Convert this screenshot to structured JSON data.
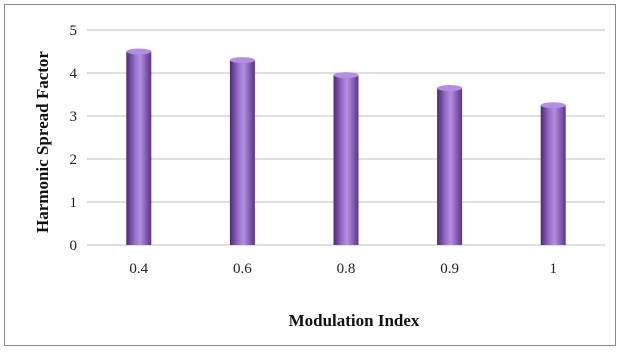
{
  "chart_data": {
    "type": "bar",
    "categories": [
      "0.4",
      "0.6",
      "0.8",
      "0.9",
      "1"
    ],
    "values": [
      4.5,
      4.3,
      3.95,
      3.65,
      3.25
    ],
    "title": "",
    "xlabel": "Modulation Index",
    "ylabel": "Harmonic Spread Factor",
    "ylim": [
      0,
      5
    ],
    "yticks": [
      "0",
      "1",
      "2",
      "3",
      "4",
      "5"
    ],
    "grid": true,
    "legend": "none",
    "colors": {
      "bar": "#7a4fa8",
      "bar_dark": "#4a2a75",
      "bar_light": "#b48ee0",
      "grid": "#bfbfbf"
    }
  }
}
